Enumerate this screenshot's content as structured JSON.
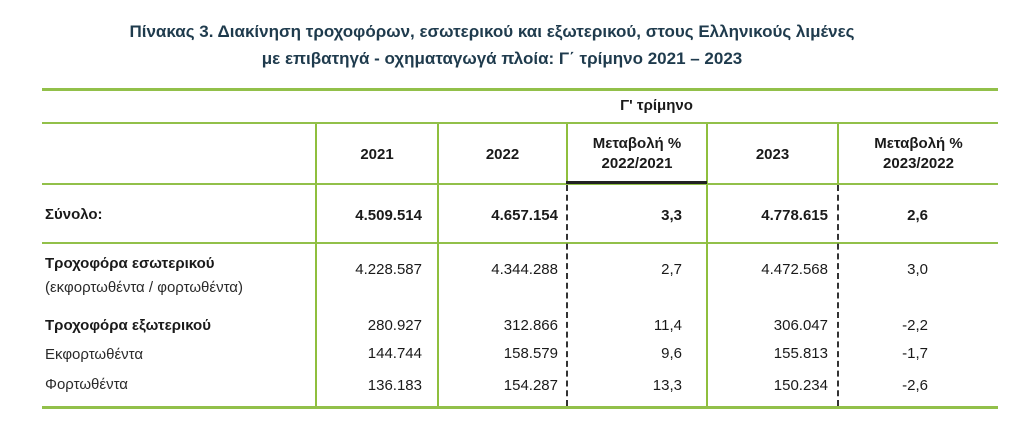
{
  "title": {
    "line1": "Πίνακας 3. Διακίνηση τροχοφόρων, εσωτερικού και εξωτερικού, στους Ελληνικούς λιμένες",
    "line2": "με επιβατηγά - οχηματαγωγά πλοία: Γ΄ τρίμηνο 2021 – 2023"
  },
  "table": {
    "group_header": "Γ' τρίμηνο",
    "columns": [
      "2021",
      "2022",
      "Μεταβολή % 2022/2021",
      "2023",
      "Μεταβολή % 2023/2022"
    ],
    "col_change1": {
      "line1": "Μεταβολή %",
      "line2": "2022/2021"
    },
    "col_change2": {
      "line1": "Μεταβολή %",
      "line2": "2023/2022"
    },
    "rows": [
      {
        "label": "Σύνολο:",
        "values": [
          "4.509.514",
          "4.657.154",
          "3,3",
          "4.778.615",
          "2,6"
        ]
      },
      {
        "label": "Τροχοφόρα εσωτερικού",
        "sublabel": "(εκφορτωθέντα / φορτωθέντα)",
        "values": [
          "4.228.587",
          "4.344.288",
          "2,7",
          "4.472.568",
          "3,0"
        ]
      },
      {
        "label": "Τροχοφόρα εξωτερικού",
        "values": [
          "280.927",
          "312.866",
          "11,4",
          "306.047",
          "-2,2"
        ]
      },
      {
        "label": "Εκφορτωθέντα",
        "values": [
          "144.744",
          "158.579",
          "9,6",
          "155.813",
          "-1,7"
        ]
      },
      {
        "label": "Φορτωθέντα",
        "values": [
          "136.183",
          "154.287",
          "13,3",
          "150.234",
          "-2,6"
        ]
      }
    ]
  },
  "colors": {
    "title": "#1f3b4d",
    "rule": "#92c04a",
    "dashed_divider": "#333333"
  }
}
